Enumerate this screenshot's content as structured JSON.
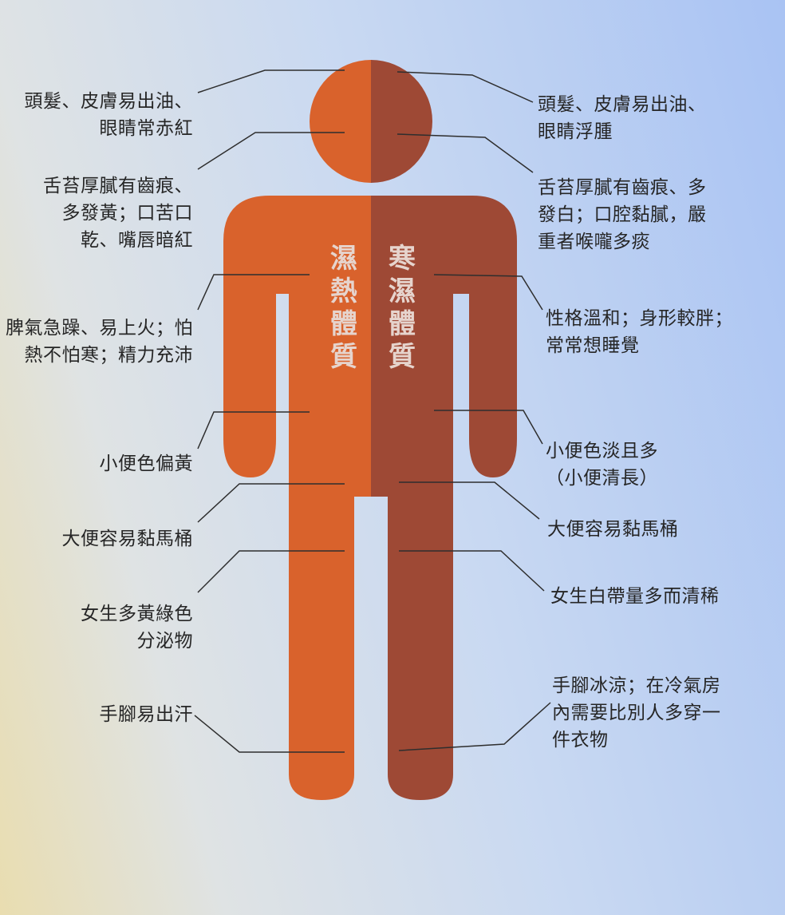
{
  "colors": {
    "left_body": "#d9622c",
    "right_body": "#9e4935",
    "leader_line": "#2e2e2e",
    "title_text": "#e6d4cd"
  },
  "titles": {
    "left_vertical": "濕熱體質",
    "right_vertical": "寒濕體質"
  },
  "left_labels": [
    {
      "id": "hair-skin",
      "text": "頭髮、皮膚易出油、\n眼睛常赤紅"
    },
    {
      "id": "tongue",
      "text": "舌苔厚膩有齒痕、\n多發黃；口苦口\n乾、嘴唇暗紅"
    },
    {
      "id": "temper",
      "text": "脾氣急躁、易上火；怕\n熱不怕寒；精力充沛"
    },
    {
      "id": "urine",
      "text": "小便色偏黃"
    },
    {
      "id": "stool",
      "text": "大便容易黏馬桶"
    },
    {
      "id": "discharge",
      "text": "女生多黃綠色\n分泌物"
    },
    {
      "id": "limbs",
      "text": "手腳易出汗"
    }
  ],
  "right_labels": [
    {
      "id": "hair-skin",
      "text": "頭髮、皮膚易出油、\n眼睛浮腫"
    },
    {
      "id": "tongue",
      "text": "舌苔厚膩有齒痕、多\n發白；口腔黏膩，嚴\n重者喉嚨多痰"
    },
    {
      "id": "temper",
      "text": "性格溫和；身形較胖；\n常常想睡覺"
    },
    {
      "id": "urine",
      "text": "小便色淡且多\n（小便清長）"
    },
    {
      "id": "stool",
      "text": "大便容易黏馬桶"
    },
    {
      "id": "discharge",
      "text": "女生白帶量多而清稀"
    },
    {
      "id": "limbs",
      "text": "手腳冰涼；在冷氣房\n內需要比別人多穿一\n件衣物"
    }
  ]
}
